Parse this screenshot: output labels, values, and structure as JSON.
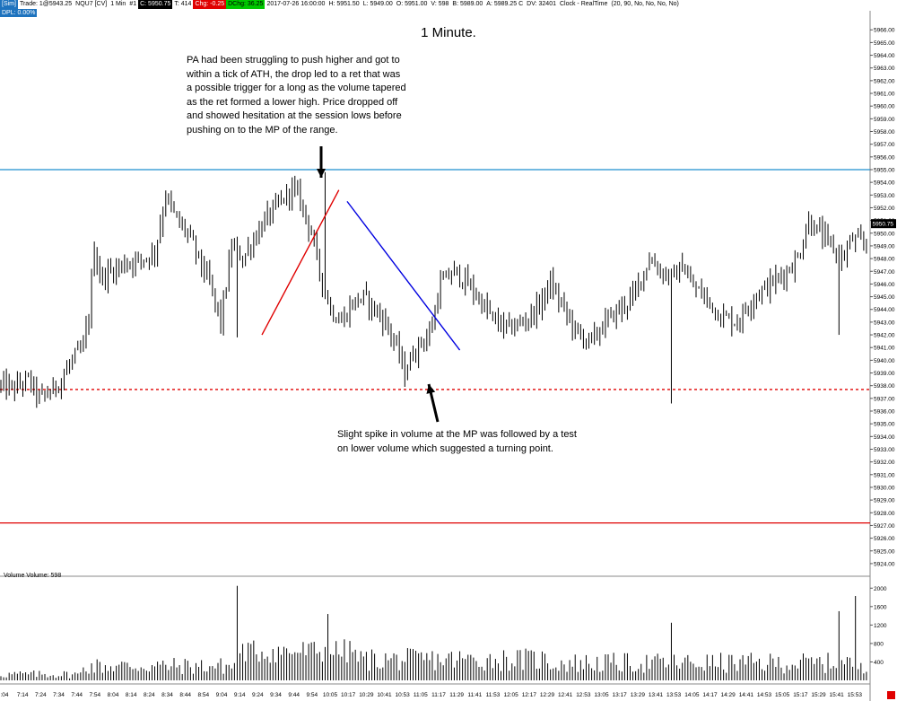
{
  "header": {
    "account": "[Sim]",
    "trade": "Trade: 1@5943.25",
    "instrument": "NQU7 [CV]",
    "interval": "1 Min",
    "panel": "#1",
    "close": "C: 5950.75",
    "ticks": "T: 414",
    "change": "Chg: -0.25",
    "dchange": "DChg: 36.25",
    "date": "2017-07-26 16:00:00",
    "high": "H: 5951.50",
    "low": "L: 5949.00",
    "open": "O: 5951.00",
    "volume": "V: 598",
    "bid": "B: 5989.00",
    "ask": "A: 5989.25 C",
    "dv": "DV: 32401",
    "clock": "Clock - RealTime",
    "params": "(20, 90, No, No, No, No)",
    "dpl": "DPL: 0.00%"
  },
  "chart_data": {
    "type": "candlestick",
    "title": "1 Minute.",
    "price_axis": {
      "range": [
        5923.5,
        5967.5
      ],
      "ticks": [
        "5966.00",
        "5965.00",
        "5964.00",
        "5963.00",
        "5962.00",
        "5961.00",
        "5960.00",
        "5959.00",
        "5958.00",
        "5957.00",
        "5956.00",
        "5955.00",
        "5954.00",
        "5953.00",
        "5952.00",
        "5951.00",
        "5950.00",
        "5949.00",
        "5948.00",
        "5947.00",
        "5946.00",
        "5945.00",
        "5944.00",
        "5943.00",
        "5942.00",
        "5941.00",
        "5940.00",
        "5939.00",
        "5938.00",
        "5937.00",
        "5936.00",
        "5935.00",
        "5934.00",
        "5933.00",
        "5932.00",
        "5931.00",
        "5930.00",
        "5929.00",
        "5928.00",
        "5927.00",
        "5926.00",
        "5925.00",
        "5924.00"
      ],
      "last_price_label": "5950.75"
    },
    "time_axis": {
      "ticks": [
        ":04",
        "7:14",
        "7:24",
        "7:34",
        "7:44",
        "7:54",
        "8:04",
        "8:14",
        "8:24",
        "8:34",
        "8:44",
        "8:54",
        "9:04",
        "9:14",
        "9:24",
        "9:34",
        "9:44",
        "9:54",
        "10:05",
        "10:17",
        "10:29",
        "10:41",
        "10:53",
        "11:05",
        "11:17",
        "11:29",
        "11:41",
        "11:53",
        "12:05",
        "12:17",
        "12:29",
        "12:41",
        "12:53",
        "13:05",
        "13:17",
        "13:29",
        "13:41",
        "13:53",
        "14:05",
        "14:17",
        "14:29",
        "14:41",
        "14:53",
        "15:05",
        "15:17",
        "15:29",
        "15:41",
        "15:53"
      ]
    },
    "price_path": [
      [
        0,
        5938
      ],
      [
        5,
        5937.8
      ],
      [
        10,
        5938.5
      ],
      [
        14,
        5937
      ],
      [
        18,
        5937.5
      ],
      [
        22,
        5938.5
      ],
      [
        26,
        5940
      ],
      [
        30,
        5941
      ],
      [
        32,
        5943.5
      ],
      [
        34,
        5949
      ],
      [
        36,
        5946.5
      ],
      [
        40,
        5947
      ],
      [
        44,
        5947.5
      ],
      [
        48,
        5947.8
      ],
      [
        52,
        5948
      ],
      [
        56,
        5948.5
      ],
      [
        60,
        5953
      ],
      [
        64,
        5951
      ],
      [
        68,
        5950
      ],
      [
        72,
        5948
      ],
      [
        76,
        5946
      ],
      [
        80,
        5943
      ],
      [
        84,
        5949
      ],
      [
        88,
        5948
      ],
      [
        92,
        5949.5
      ],
      [
        96,
        5951
      ],
      [
        100,
        5952
      ],
      [
        104,
        5953
      ],
      [
        106,
        5953.5
      ],
      [
        108,
        5953
      ],
      [
        110,
        5952
      ],
      [
        113,
        5950
      ],
      [
        116,
        5947
      ],
      [
        120,
        5944
      ],
      [
        124,
        5943
      ],
      [
        128,
        5944.5
      ],
      [
        132,
        5945
      ],
      [
        136,
        5944
      ],
      [
        140,
        5943
      ],
      [
        144,
        5941
      ],
      [
        147,
        5939
      ],
      [
        150,
        5940.5
      ],
      [
        153,
        5941.5
      ],
      [
        156,
        5942
      ],
      [
        160,
        5946
      ],
      [
        165,
        5947
      ],
      [
        170,
        5946
      ],
      [
        175,
        5944.5
      ],
      [
        180,
        5943
      ],
      [
        185,
        5942.5
      ],
      [
        190,
        5943
      ],
      [
        195,
        5944
      ],
      [
        200,
        5946
      ],
      [
        205,
        5944
      ],
      [
        210,
        5942
      ],
      [
        215,
        5941.5
      ],
      [
        220,
        5943
      ],
      [
        225,
        5944
      ],
      [
        230,
        5945
      ],
      [
        236,
        5948
      ],
      [
        240,
        5947
      ],
      [
        245,
        5946.5
      ],
      [
        248,
        5947.5
      ],
      [
        251,
        5946
      ],
      [
        256,
        5945
      ],
      [
        262,
        5943.5
      ],
      [
        268,
        5943
      ],
      [
        274,
        5945
      ],
      [
        280,
        5946
      ],
      [
        286,
        5947
      ],
      [
        290,
        5948
      ],
      [
        294,
        5951
      ],
      [
        298,
        5950
      ],
      [
        302,
        5949
      ],
      [
        306,
        5948
      ],
      [
        310,
        5949.5
      ],
      [
        315,
        5949
      ]
    ],
    "horizontal_lines": [
      {
        "price": 5955.0,
        "color": "#1e8fcf",
        "style": "solid"
      },
      {
        "price": 5937.7,
        "color": "#e00000",
        "style": "dashed"
      },
      {
        "price": 5927.2,
        "color": "#e00000",
        "style": "solid"
      }
    ],
    "trendlines": [
      {
        "color": "#e00000",
        "from": [
          95,
          5942
        ],
        "to": [
          123,
          5953.4
        ]
      },
      {
        "color": "#0000e0",
        "from": [
          126,
          5952.5
        ],
        "to": [
          167,
          5940.8
        ]
      }
    ],
    "volume": {
      "label": "Volume  Volume: 598",
      "ticks": [
        "2000",
        "1600",
        "1200",
        "800",
        "400"
      ],
      "range": [
        0,
        2200
      ],
      "spikes": [
        [
          86,
          2050
        ],
        [
          119,
          1440
        ],
        [
          244,
          1250
        ],
        [
          305,
          1500
        ],
        [
          311,
          1830
        ]
      ]
    }
  },
  "annotations": {
    "top_note": [
      "PA had been struggling to push higher and got to",
      "within a tick of ATH, the drop led to a ret that was",
      "a possible trigger for a long as the volume tapered",
      "as the ret formed a lower high.  Price dropped off",
      "and showed hesitation at the session lows before",
      "pushing on to the MP of the range."
    ],
    "bottom_note": [
      "Slight spike in volume at the MP was followed by a test",
      "on lower volume which suggested a turning point."
    ]
  },
  "colors": {
    "candle": "#000000",
    "axis_text": "#000000",
    "blue_level": "#1e8fcf",
    "red_level": "#e00000",
    "red_trend": "#e00000",
    "blue_trend": "#0000e0"
  }
}
